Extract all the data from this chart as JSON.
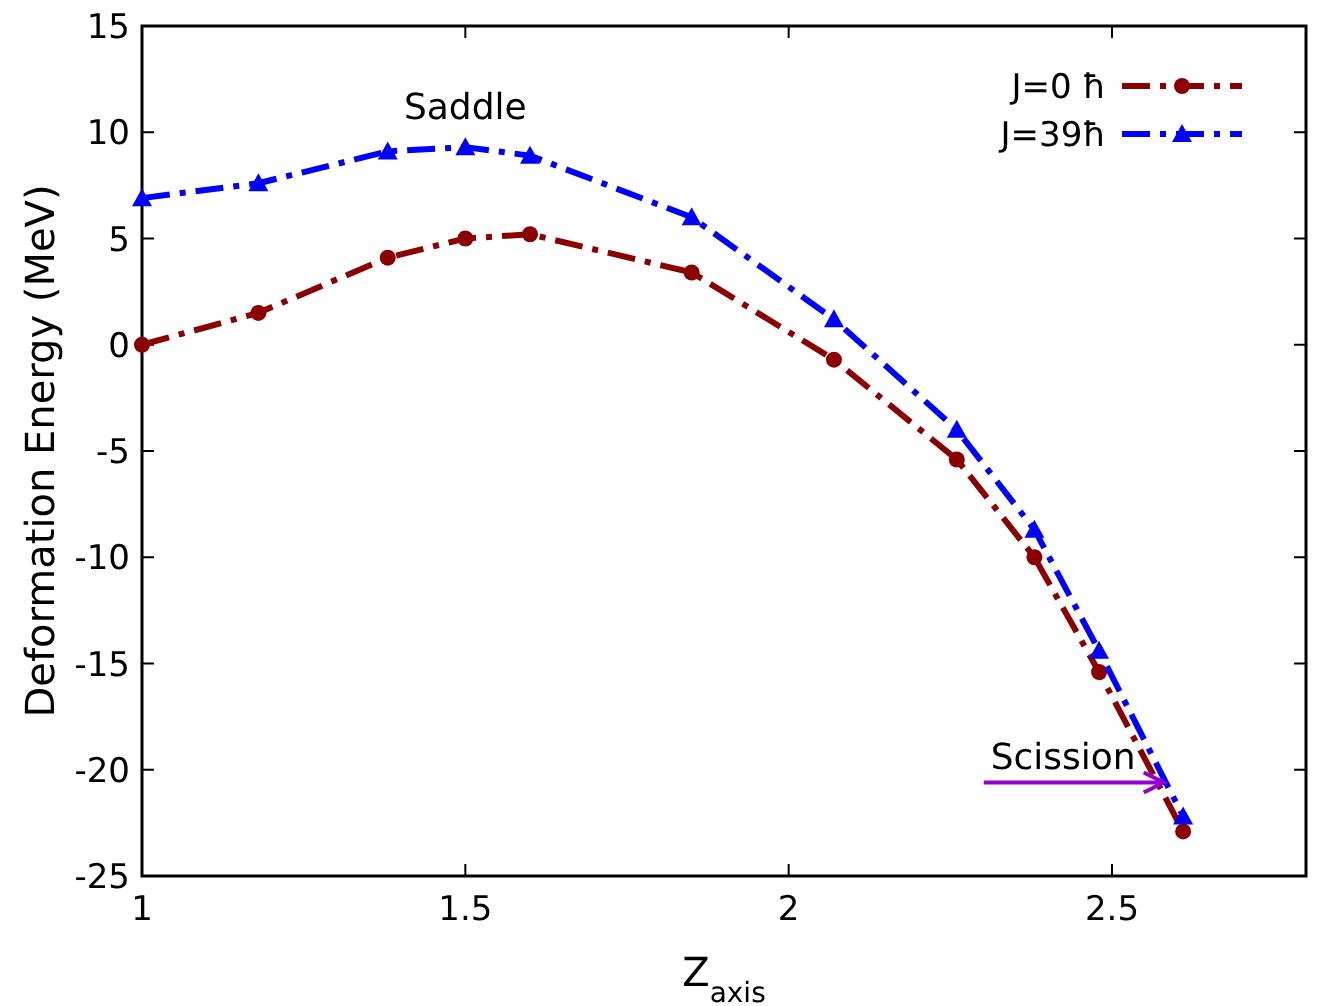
{
  "chart_data": {
    "type": "line",
    "xlabel": "Z$_{axis}$",
    "ylabel": "Deformation Energy (MeV)",
    "xlim": [
      1,
      2.8
    ],
    "xticks": [
      1,
      1.5,
      2,
      2.5
    ],
    "ylim": [
      -25,
      15
    ],
    "yticks": [
      -25,
      -20,
      -15,
      -10,
      -5,
      0,
      5,
      10,
      15
    ],
    "x": [
      1,
      1.18,
      1.38,
      1.5,
      1.6,
      1.85,
      2.07,
      2.26,
      2.38,
      2.48,
      2.61
    ],
    "series": [
      {
        "name": "J=0 ħ",
        "color": "#8b0000",
        "marker": "circle",
        "values": [
          0,
          1.5,
          4.1,
          5.0,
          5.2,
          3.4,
          -0.7,
          -5.4,
          -10,
          -15.4,
          -22.9
        ]
      },
      {
        "name": "J=39ħ",
        "color": "#0000ff",
        "marker": "triangle",
        "values": [
          6.9,
          7.6,
          9.1,
          9.3,
          8.9,
          6.0,
          1.2,
          -4,
          -8.7,
          -14.4,
          -22.2
        ]
      }
    ],
    "line_style": "dashed",
    "legend": "top right",
    "grid": false,
    "annotations": [
      {
        "text": "Saddle",
        "x": 1.5,
        "y": 9.3
      },
      {
        "text": "Scission",
        "x": 2.58,
        "y": -20.6
      }
    ]
  }
}
